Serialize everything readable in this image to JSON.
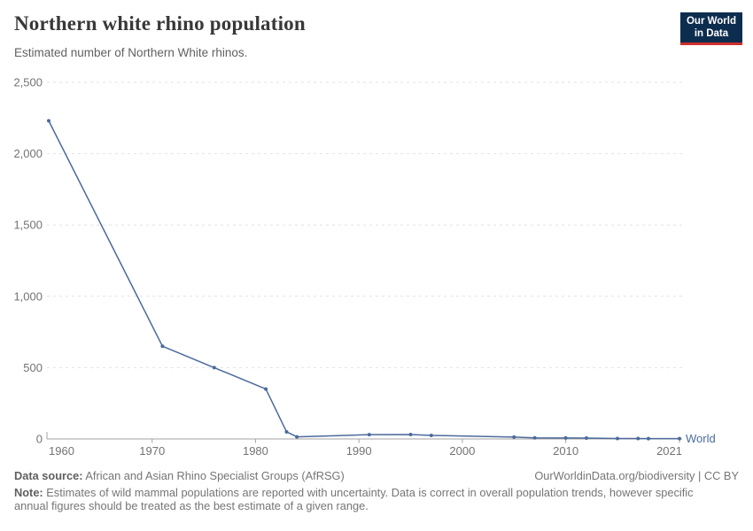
{
  "header": {
    "title": "Northern white rhino population",
    "subtitle": "Estimated number of Northern White rhinos."
  },
  "logo": {
    "line1": "Our World",
    "line2": "in Data",
    "bg_color": "#0d2d4f",
    "accent_color": "#ce2f2b"
  },
  "chart_data": {
    "type": "line",
    "title": "Northern white rhino population",
    "xlabel": "",
    "ylabel": "",
    "xlim": [
      1960,
      2021
    ],
    "ylim": [
      0,
      2500
    ],
    "grid": "horizontal-dashed",
    "legend_position": "end-of-line",
    "yticks": [
      0,
      500,
      1000,
      1500,
      2000,
      2500
    ],
    "ytick_labels": [
      "0",
      "500",
      "1,000",
      "1,500",
      "2,000",
      "2,500"
    ],
    "xticks": [
      1960,
      1970,
      1980,
      1990,
      2000,
      2010,
      2021
    ],
    "series": [
      {
        "name": "World",
        "color": "#4c6a9c",
        "x": [
          1960,
          1971,
          1976,
          1981,
          1983,
          1984,
          1991,
          1995,
          1997,
          2005,
          2007,
          2010,
          2012,
          2015,
          2017,
          2018,
          2021
        ],
        "values": [
          2230,
          650,
          500,
          350,
          50,
          15,
          30,
          31,
          25,
          13,
          8,
          7,
          6,
          3,
          3,
          2,
          2
        ]
      }
    ]
  },
  "footer": {
    "source_label": "Data source:",
    "source_text": "African and Asian Rhino Specialist Groups (AfRSG)",
    "link": "OurWorldinData.org/biodiversity | CC BY",
    "note_label": "Note:",
    "note_text": "Estimates of wild mammal populations are reported with uncertainty. Data is correct in overall population trends, however specific annual figures should be treated as the best estimate of a given range."
  },
  "colors": {
    "title": "#383838",
    "subtitle": "#606060",
    "axis_text": "#737373",
    "gridline": "#e2e2e2",
    "axis_line": "#a3a3a3",
    "series": "#4c6a9c",
    "footer_text": "#757575"
  }
}
